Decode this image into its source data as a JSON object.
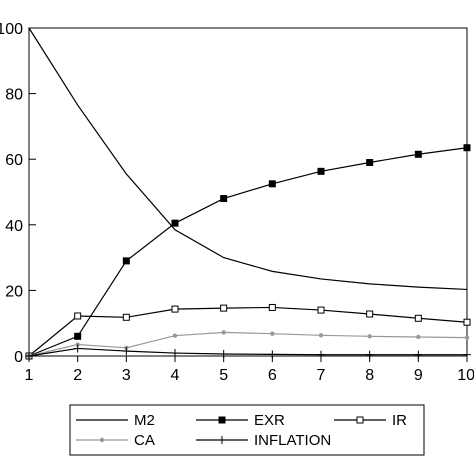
{
  "chart_data": {
    "type": "line",
    "title": "",
    "xlabel": "",
    "ylabel": "",
    "x": [
      1,
      2,
      3,
      4,
      5,
      6,
      7,
      8,
      9,
      10
    ],
    "xlim": [
      1,
      10
    ],
    "ylim": [
      0,
      100
    ],
    "x_ticks": [
      "1",
      "2",
      "3",
      "4",
      "5",
      "6",
      "7",
      "8",
      "9",
      "10"
    ],
    "y_ticks": [
      "0",
      "20",
      "40",
      "60",
      "80",
      "100"
    ],
    "y_tick_values": [
      0,
      20,
      40,
      60,
      80,
      100
    ],
    "grid": false,
    "legend_placement": "bottom",
    "series": [
      {
        "name": "M2",
        "marker": "none",
        "color": "#000000",
        "values": [
          100,
          76.5,
          55.5,
          38.5,
          30.0,
          25.8,
          23.5,
          22.0,
          21.0,
          20.3
        ]
      },
      {
        "name": "EXR",
        "marker": "filled-square",
        "color": "#000000",
        "values": [
          0,
          6.0,
          29.0,
          40.5,
          48.0,
          52.5,
          56.3,
          59.0,
          61.5,
          63.5
        ]
      },
      {
        "name": "IR",
        "marker": "open-square",
        "color": "#000000",
        "values": [
          0,
          12.2,
          11.8,
          14.3,
          14.6,
          14.8,
          14.0,
          12.8,
          11.5,
          10.3
        ]
      },
      {
        "name": "CA",
        "marker": "dot",
        "color": "#999999",
        "values": [
          0,
          3.5,
          2.5,
          6.2,
          7.2,
          6.8,
          6.3,
          6.0,
          5.8,
          5.6
        ]
      },
      {
        "name": "INFLATION",
        "marker": "plus",
        "color": "#000000",
        "values": [
          0,
          2.3,
          1.5,
          0.9,
          0.6,
          0.5,
          0.4,
          0.4,
          0.4,
          0.4
        ]
      }
    ]
  }
}
